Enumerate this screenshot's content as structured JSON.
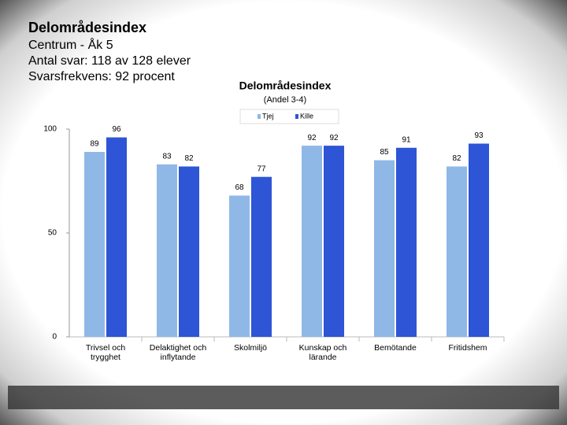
{
  "header": {
    "title": "Delområdesindex",
    "lines": [
      "Centrum - Åk 5",
      "Antal svar: 118 av 128 elever",
      "Svarsfrekvens: 92 procent"
    ]
  },
  "chart_data": {
    "type": "bar",
    "title": "Delområdesindex",
    "subtitle": "(Andel 3-4)",
    "categories": [
      "Trivsel och trygghet",
      "Delaktighet och inflytande",
      "Skolmiljö",
      "Kunskap och lärande",
      "Bemötande",
      "Fritidshem"
    ],
    "series": [
      {
        "name": "Tjej",
        "color": "#8fb8e6",
        "values": [
          89,
          83,
          68,
          92,
          85,
          82
        ]
      },
      {
        "name": "Kille",
        "color": "#2d55d6",
        "values": [
          96,
          82,
          77,
          92,
          91,
          93
        ]
      }
    ],
    "ylim": [
      0,
      100
    ],
    "yticks": [
      0,
      50,
      100
    ],
    "grid": false,
    "legend": "top"
  }
}
